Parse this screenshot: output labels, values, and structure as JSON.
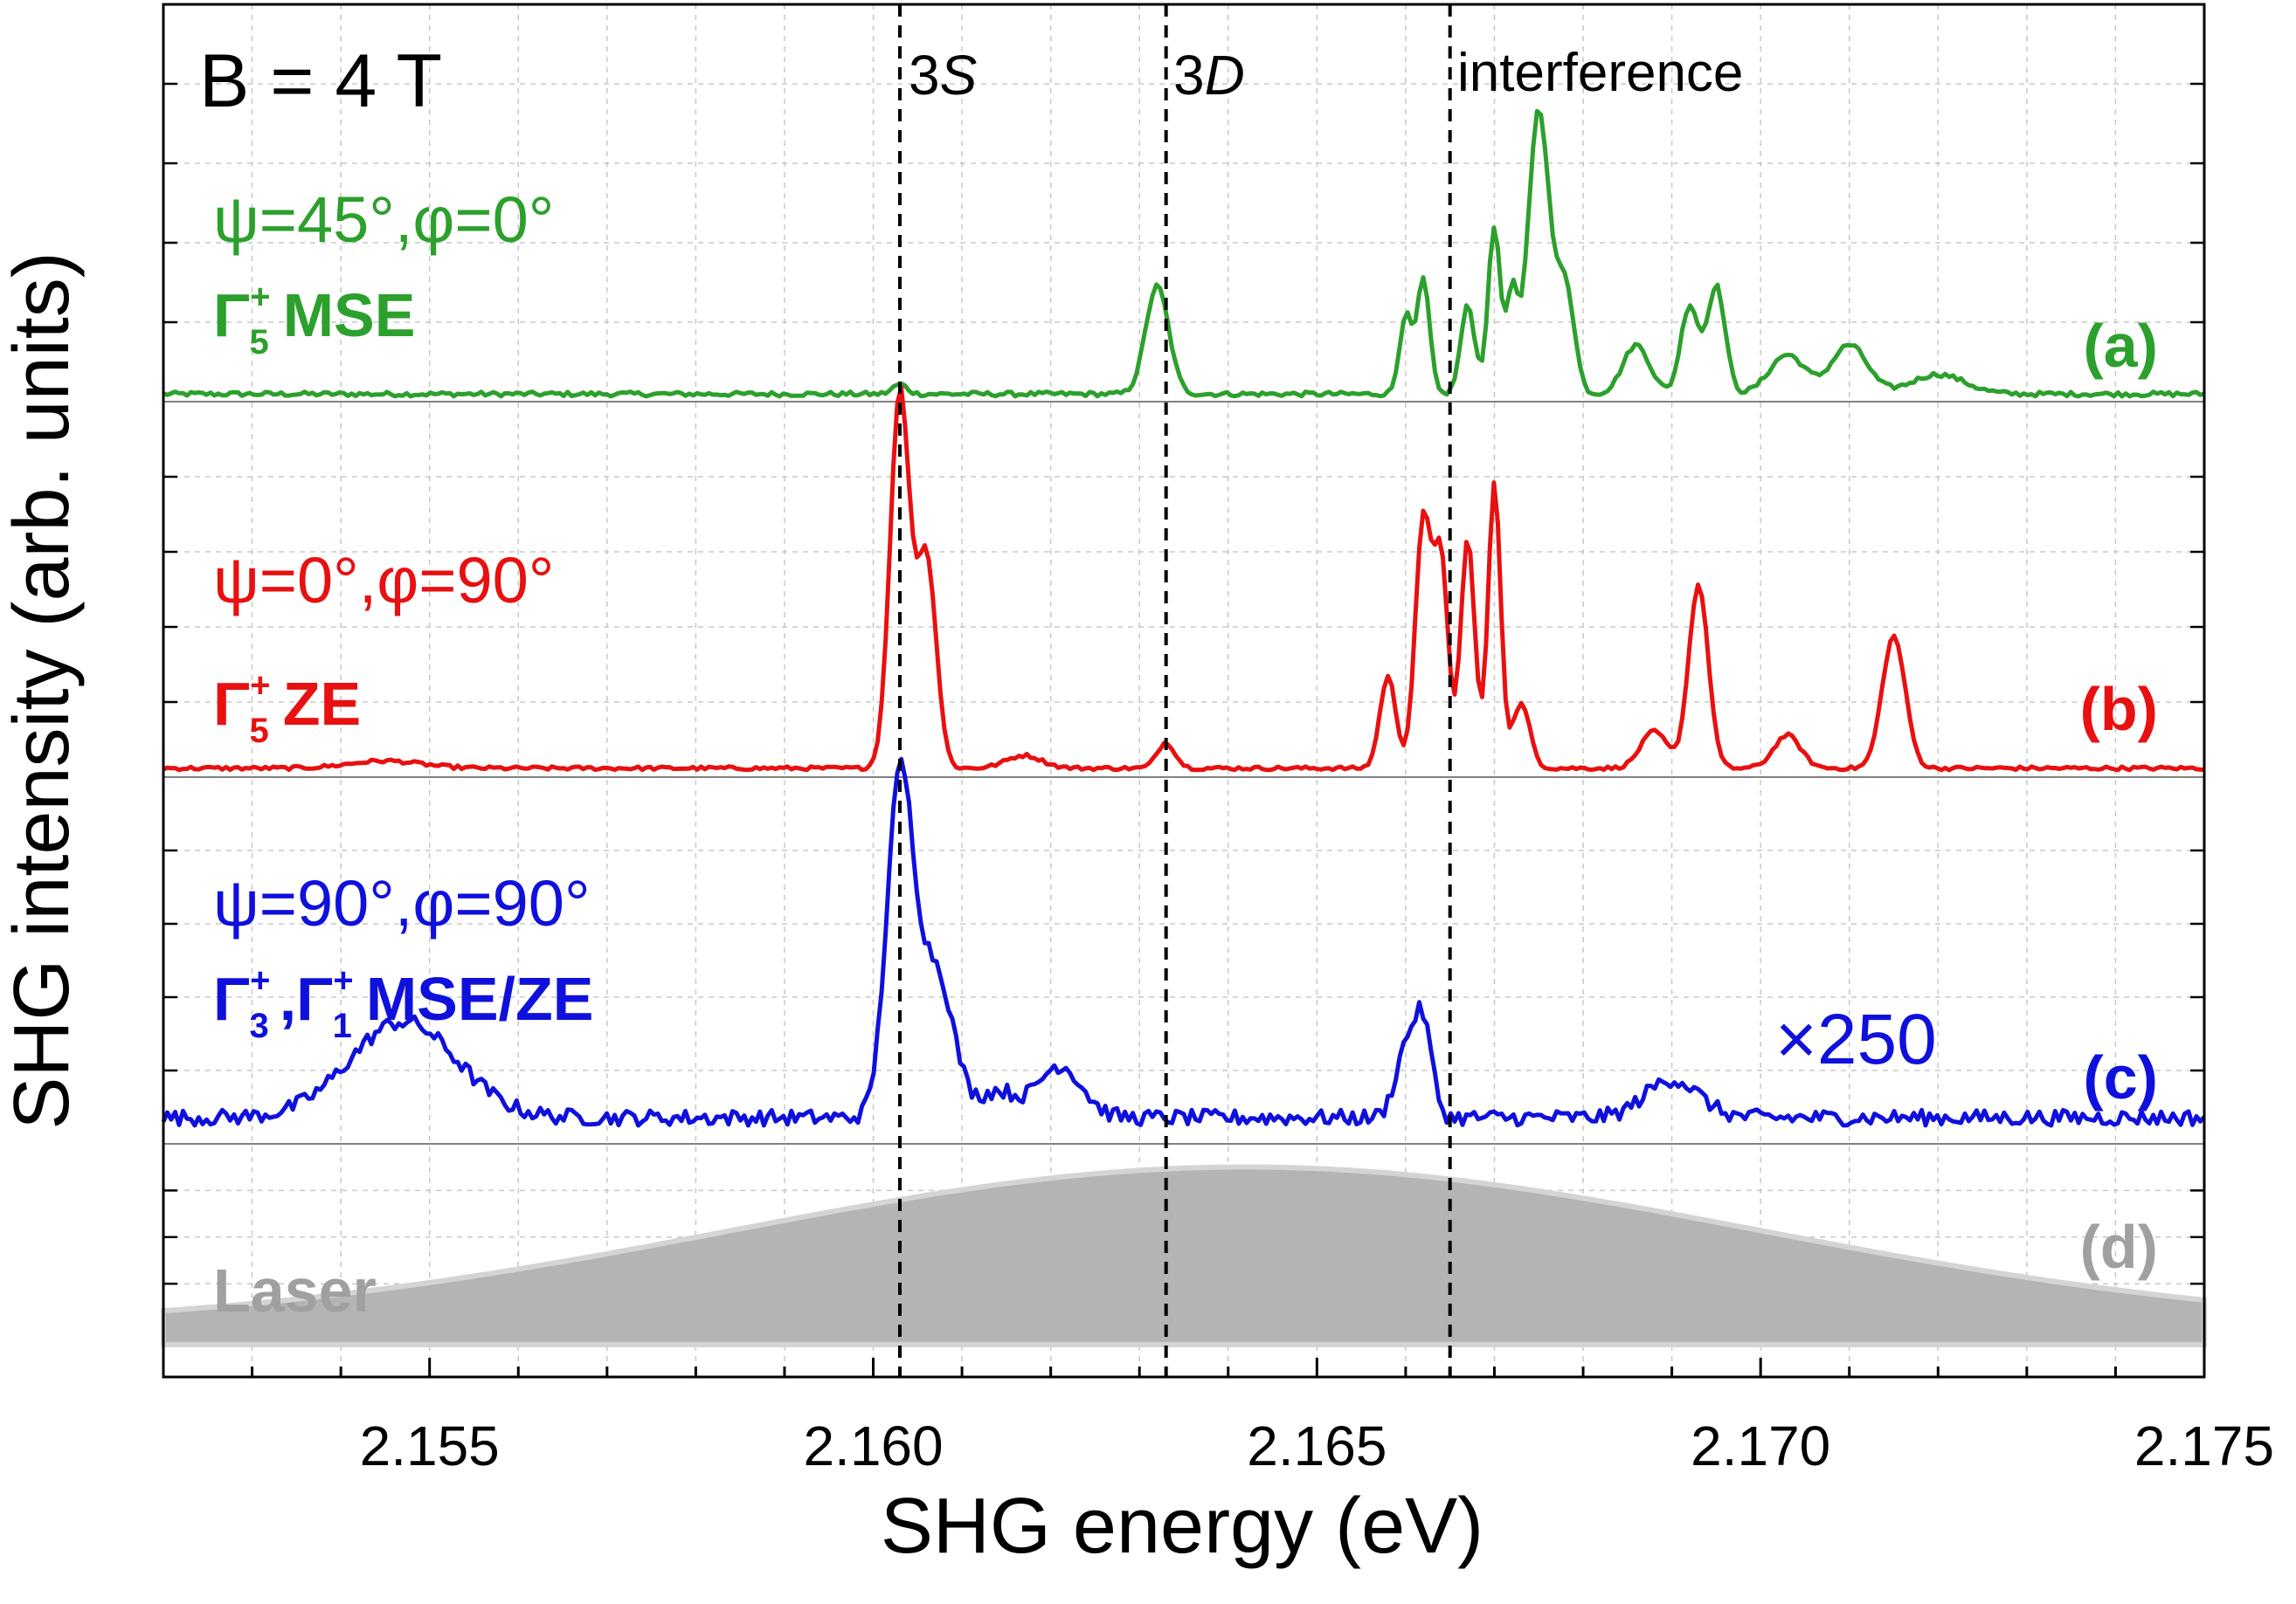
{
  "chart_data": {
    "type": "line",
    "title": "B = 4 T",
    "xlabel": "SHG energy (eV)",
    "ylabel": "SHG intensity (arb. units)",
    "xlim": [
      2.152,
      2.175
    ],
    "x_ticks": [
      "2.155",
      "2.160",
      "2.165",
      "2.170",
      "2.175"
    ],
    "x_tick_values": [
      2.155,
      2.16,
      2.165,
      2.17,
      2.175
    ],
    "grid": true,
    "vlines": [
      {
        "x": 2.1603,
        "label_main": "3",
        "label_italic": "S"
      },
      {
        "x": 2.1633,
        "label_main": "3",
        "label_italic": "D"
      },
      {
        "x": 2.1665,
        "label_main": "interference",
        "label_italic": ""
      }
    ],
    "panels": [
      {
        "id": "a",
        "tag": "(a)",
        "color": "#2ca02c",
        "config": "ψ=45°,φ=0°",
        "symmetry": "Γ",
        "sup": "+",
        "sub": "5",
        "mode": "MSE",
        "scale_label": "",
        "baseline": 0.03,
        "noise": 0.012,
        "peaks": [
          {
            "x": 2.1603,
            "height": 0.05,
            "width": 8e-05
          },
          {
            "x": 2.1632,
            "height": 0.55,
            "width": 0.00013
          },
          {
            "x": 2.166,
            "height": 0.4,
            "width": 7e-05
          },
          {
            "x": 2.1662,
            "height": 0.58,
            "width": 7e-05
          },
          {
            "x": 2.1667,
            "height": 0.45,
            "width": 8e-05
          },
          {
            "x": 2.167,
            "height": 0.85,
            "width": 7e-05
          },
          {
            "x": 2.1672,
            "height": 0.5,
            "width": 6e-05
          },
          {
            "x": 2.1675,
            "height": 1.45,
            "width": 0.00012
          },
          {
            "x": 2.1678,
            "height": 0.55,
            "width": 0.0001
          },
          {
            "x": 2.1686,
            "height": 0.25,
            "width": 0.00015
          },
          {
            "x": 2.1692,
            "height": 0.45,
            "width": 0.0001
          },
          {
            "x": 2.1695,
            "height": 0.55,
            "width": 0.0001
          },
          {
            "x": 2.1703,
            "height": 0.2,
            "width": 0.0002
          },
          {
            "x": 2.171,
            "height": 0.25,
            "width": 0.0002
          },
          {
            "x": 2.172,
            "height": 0.1,
            "width": 0.0003
          }
        ]
      },
      {
        "id": "b",
        "tag": "(b)",
        "color": "#e81010",
        "config": "ψ=0°,φ=90°",
        "symmetry": "Γ",
        "sup": "+",
        "sub": "5",
        "mode": "ZE",
        "scale_label": "",
        "baseline": 0.02,
        "noise": 0.01,
        "peaks": [
          {
            "x": 2.1545,
            "height": 0.04,
            "width": 0.0004
          },
          {
            "x": 2.1603,
            "height": 2.05,
            "width": 0.00011
          },
          {
            "x": 2.1606,
            "height": 1.15,
            "width": 0.00011
          },
          {
            "x": 2.1617,
            "height": 0.07,
            "width": 0.0002
          },
          {
            "x": 2.1633,
            "height": 0.14,
            "width": 0.0001
          },
          {
            "x": 2.1658,
            "height": 0.5,
            "width": 9e-05
          },
          {
            "x": 2.1662,
            "height": 1.35,
            "width": 9e-05
          },
          {
            "x": 2.1664,
            "height": 1.1,
            "width": 8e-05
          },
          {
            "x": 2.1667,
            "height": 1.25,
            "width": 8e-05
          },
          {
            "x": 2.167,
            "height": 1.55,
            "width": 7e-05
          },
          {
            "x": 2.1673,
            "height": 0.35,
            "width": 0.0001
          },
          {
            "x": 2.1688,
            "height": 0.2,
            "width": 0.00015
          },
          {
            "x": 2.1693,
            "height": 1.0,
            "width": 0.00011
          },
          {
            "x": 2.1703,
            "height": 0.18,
            "width": 0.00015
          },
          {
            "x": 2.1715,
            "height": 0.72,
            "width": 0.00013
          }
        ]
      },
      {
        "id": "c",
        "tag": "(c)",
        "color": "#1010dd",
        "config": "ψ=90°,φ=90°",
        "symmetry": "Γ",
        "sup": "+",
        "sub": "3",
        "symmetry2": "Γ",
        "sup2": "+",
        "sub2": "1",
        "mode": "MSE/ZE",
        "scale_label": "×250",
        "baseline": 0.08,
        "noise": 0.045,
        "peaks": [
          {
            "x": 2.1547,
            "height": 0.55,
            "width": 0.0006
          },
          {
            "x": 2.1603,
            "height": 1.9,
            "width": 0.00015
          },
          {
            "x": 2.1607,
            "height": 0.85,
            "width": 0.0002
          },
          {
            "x": 2.1614,
            "height": 0.15,
            "width": 0.0002
          },
          {
            "x": 2.1621,
            "height": 0.3,
            "width": 0.00025
          },
          {
            "x": 2.166,
            "height": 0.38,
            "width": 0.00012
          },
          {
            "x": 2.1662,
            "height": 0.5,
            "width": 0.0001
          },
          {
            "x": 2.169,
            "height": 0.22,
            "width": 0.0003
          }
        ]
      },
      {
        "id": "d",
        "tag": "(d)",
        "color": "#a0a0a0",
        "config": "Laser",
        "scale_label": "",
        "envelope": {
          "center": 2.1642,
          "sigma": 0.0058,
          "height": 1.0,
          "offset": 0.1
        }
      }
    ]
  }
}
